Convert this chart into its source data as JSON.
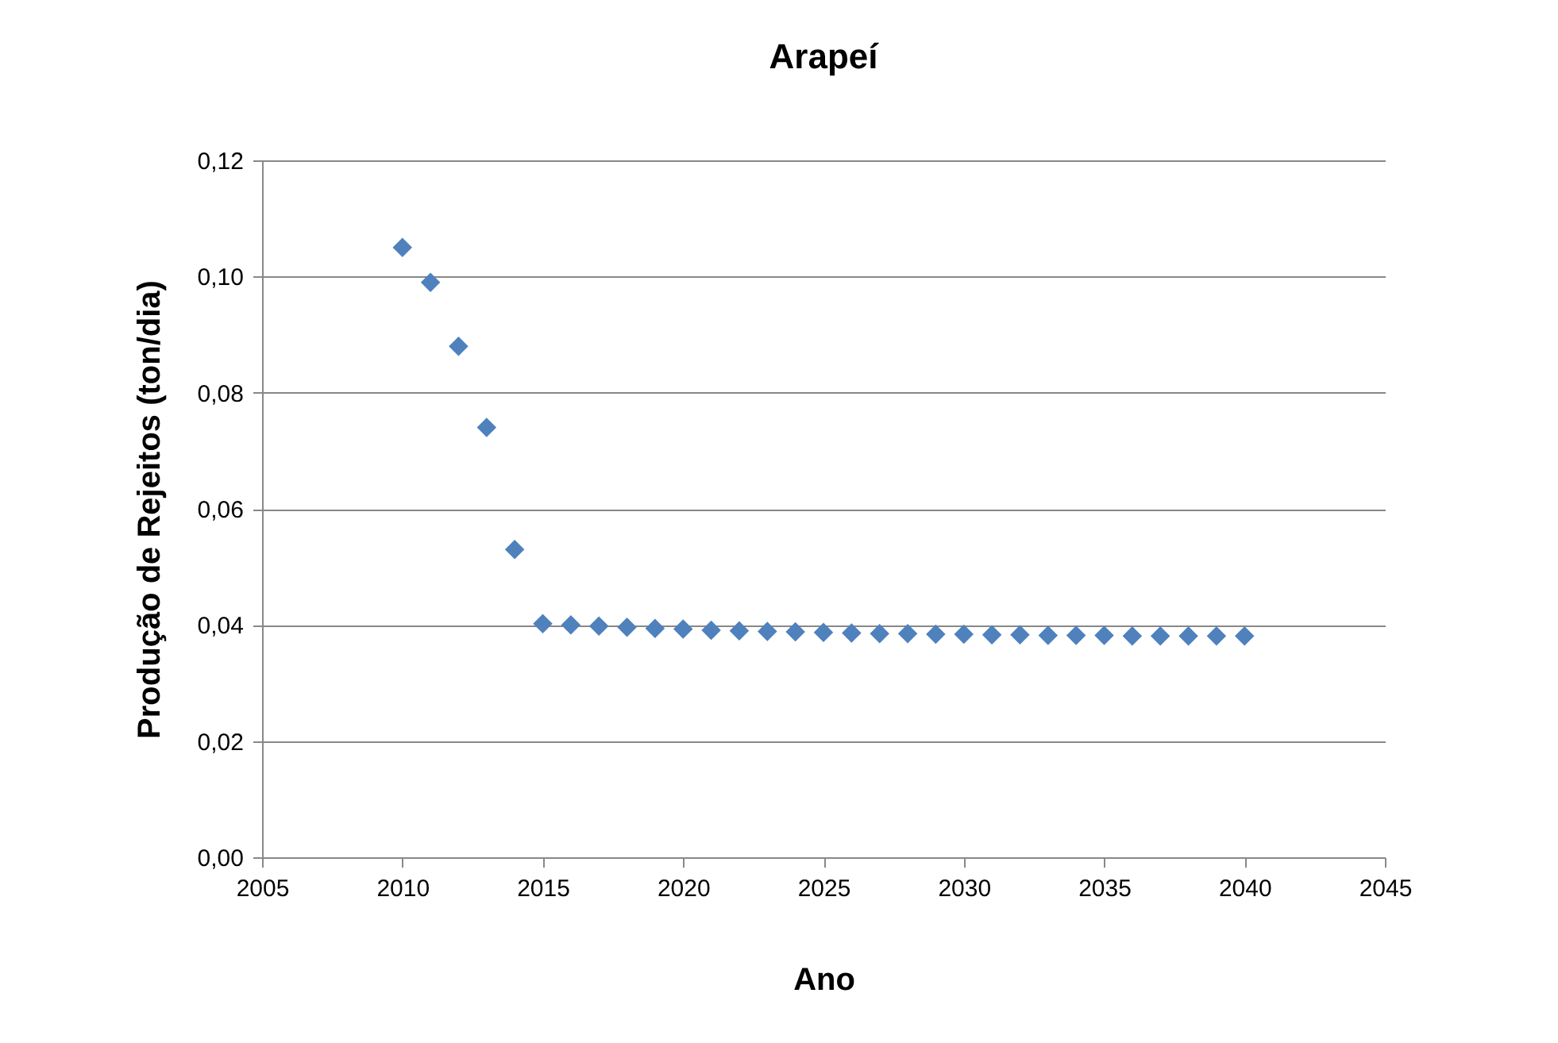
{
  "chart_data": {
    "type": "scatter",
    "title": "Arapeí",
    "xlabel": "Ano",
    "ylabel": "Produção de Rejeitos (ton/dia)",
    "x": [
      2010,
      2011,
      2012,
      2013,
      2014,
      2015,
      2016,
      2017,
      2018,
      2019,
      2020,
      2021,
      2022,
      2023,
      2024,
      2025,
      2026,
      2027,
      2028,
      2029,
      2030,
      2031,
      2032,
      2033,
      2034,
      2035,
      2036,
      2037,
      2038,
      2039,
      2040
    ],
    "series": [
      {
        "color": "#4f81bd",
        "values": [
          0.105,
          0.099,
          0.088,
          0.074,
          0.053,
          0.0402,
          0.04,
          0.0398,
          0.0396,
          0.0394,
          0.0393,
          0.0391,
          0.039,
          0.0389,
          0.0388,
          0.0387,
          0.0386,
          0.0385,
          0.0385,
          0.0384,
          0.0384,
          0.0383,
          0.0383,
          0.0382,
          0.0382,
          0.0382,
          0.0381,
          0.0381,
          0.0381,
          0.0381,
          0.0381
        ]
      }
    ],
    "xlim": [
      2005,
      2045
    ],
    "xticks": [
      2005,
      2010,
      2015,
      2020,
      2025,
      2030,
      2035,
      2040,
      2045
    ],
    "ylim": [
      0,
      0.12
    ],
    "yticks": [
      {
        "value": 0,
        "label": "0,00"
      },
      {
        "value": 0.02,
        "label": "0,02"
      },
      {
        "value": 0.04,
        "label": "0,04"
      },
      {
        "value": 0.06,
        "label": "0,06"
      },
      {
        "value": 0.08,
        "label": "0,08"
      },
      {
        "value": 0.1,
        "label": "0,10"
      },
      {
        "value": 0.12,
        "label": "0,12"
      }
    ],
    "grid": "y",
    "marker": "diamond",
    "legend": false
  }
}
